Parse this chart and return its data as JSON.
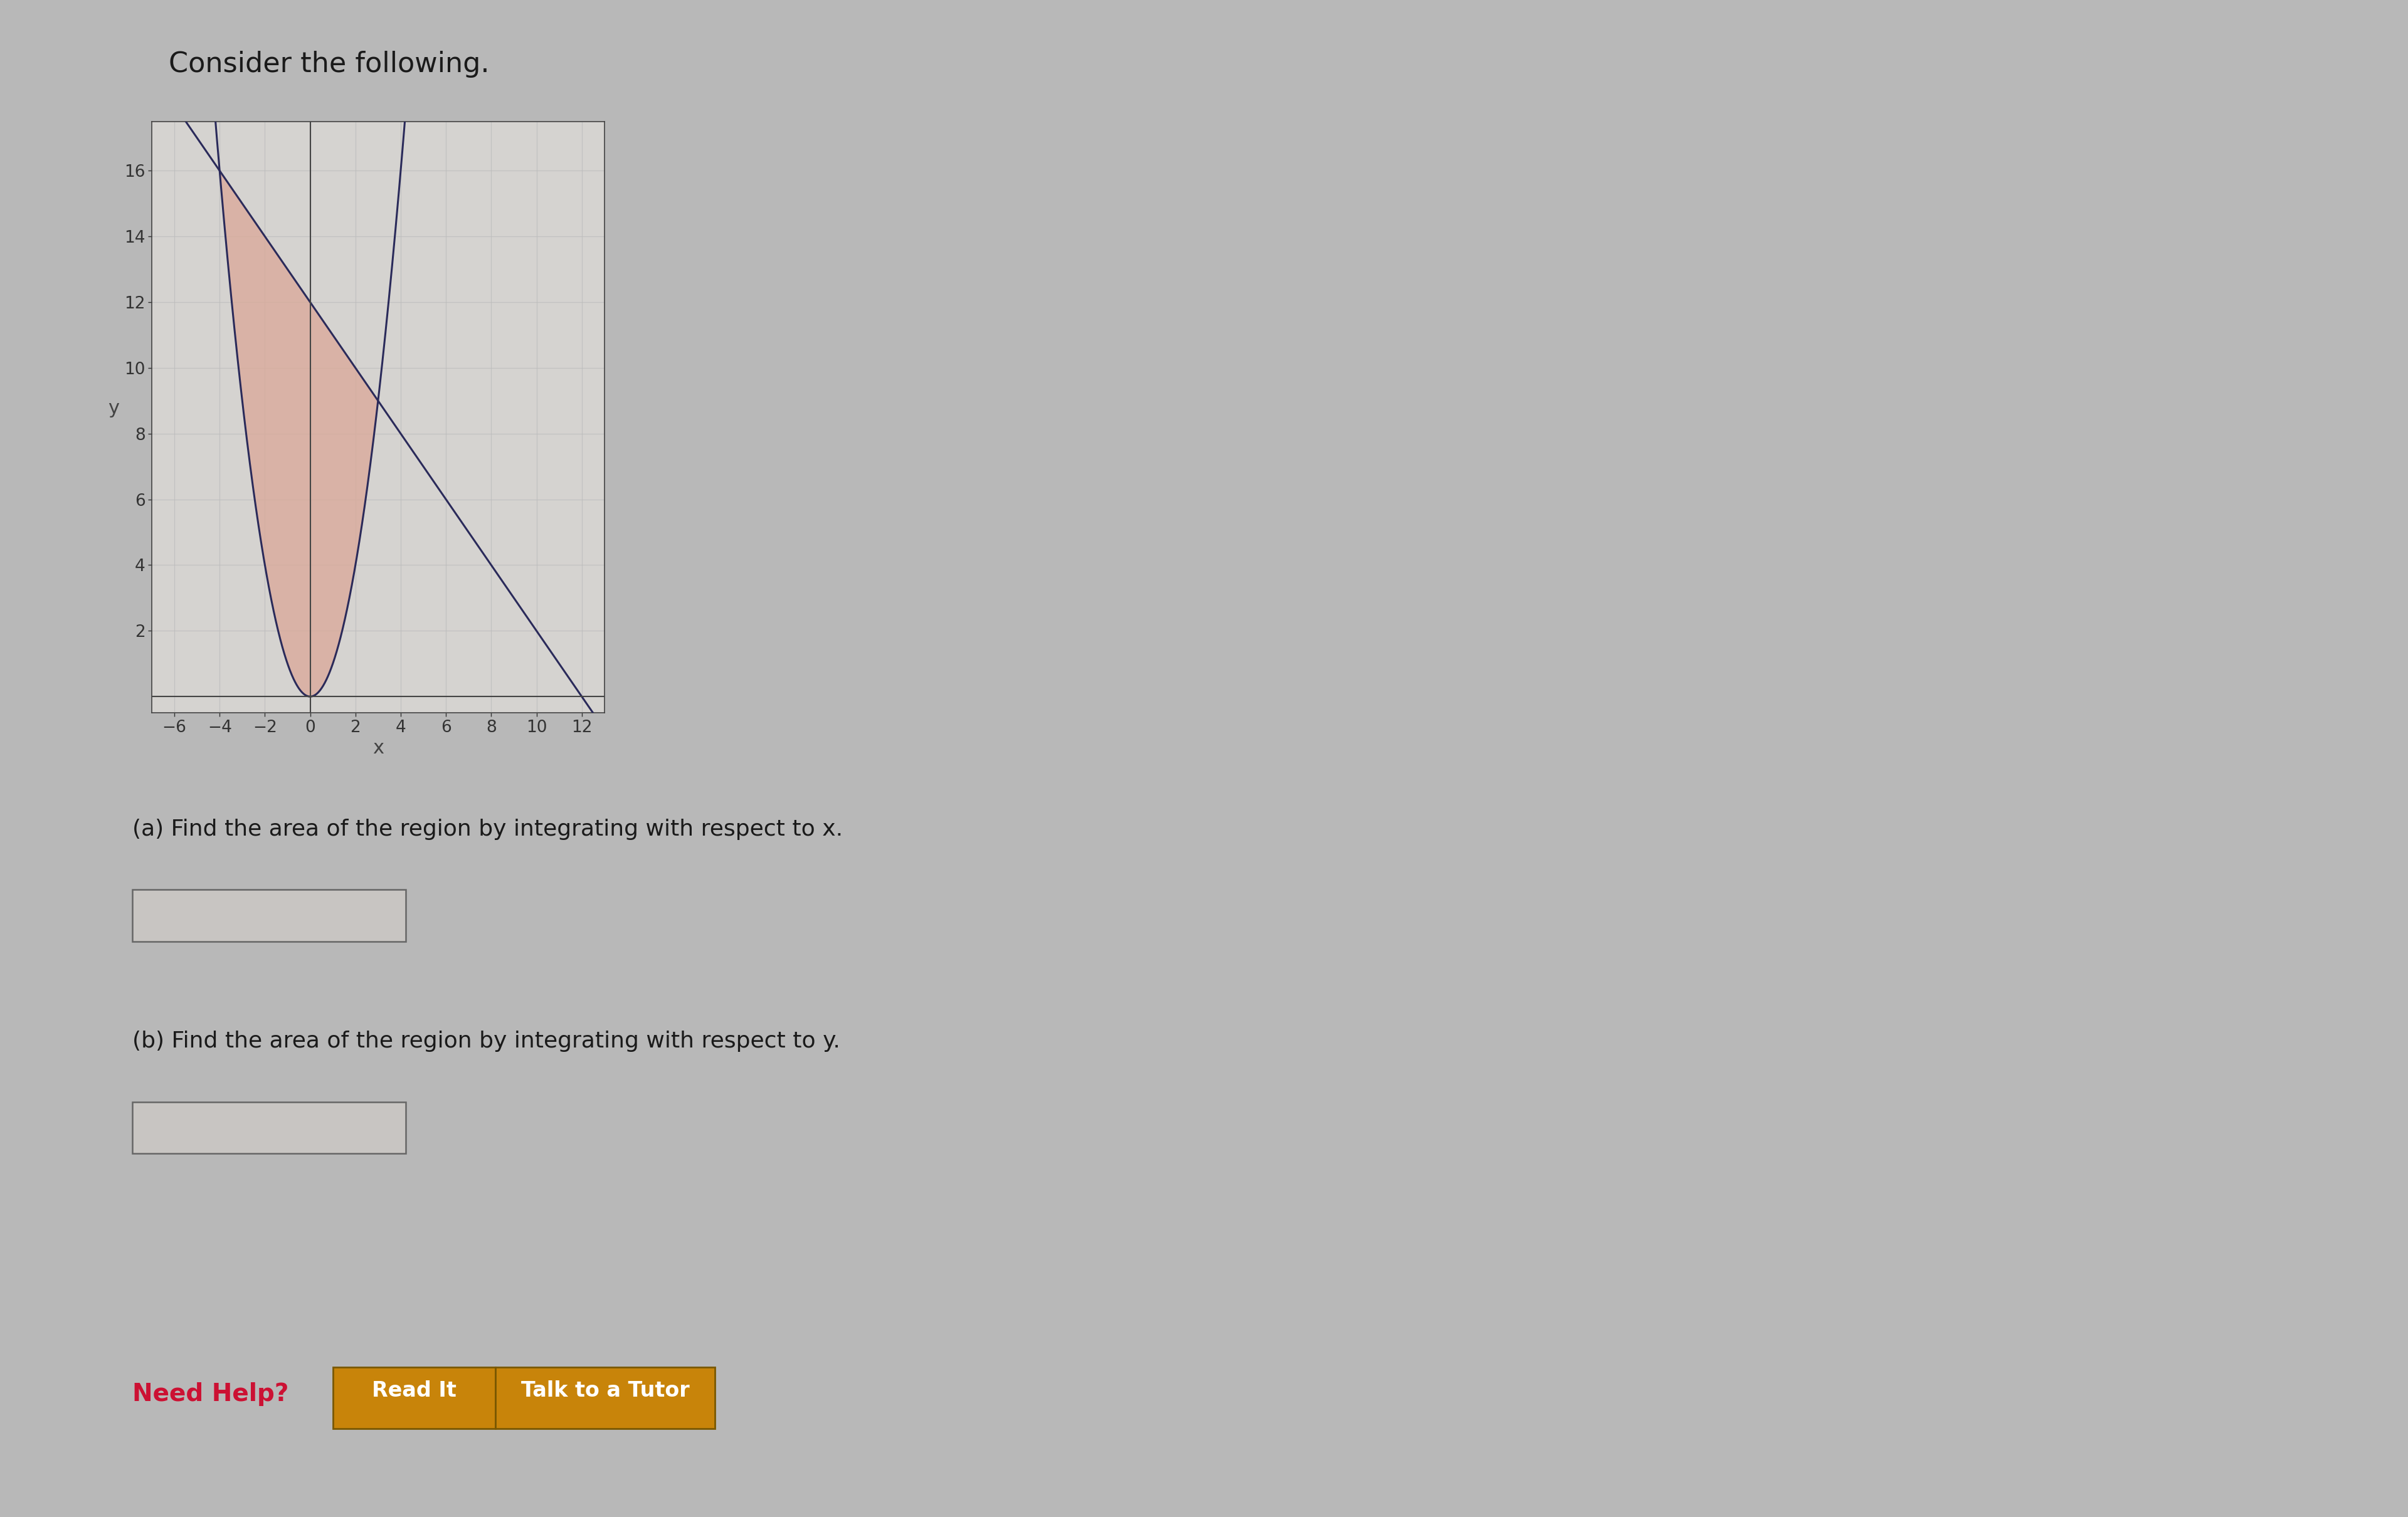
{
  "title_text": "Consider the following.",
  "bg_color": "#b8b8b8",
  "panel_color": "#d0d0d0",
  "white_panel": "#d8d5d2",
  "fill_color": "#dba898",
  "fill_alpha": 0.75,
  "curve_color": "#2a2a5a",
  "line_color": "#2a2a5a",
  "axis_color": "#444444",
  "tick_color": "#333333",
  "grid_color": "#bbbbbb",
  "xlim": [
    -7,
    13
  ],
  "ylim": [
    -0.5,
    17.5
  ],
  "xticks": [
    -6,
    -4,
    -2,
    0,
    2,
    4,
    6,
    8,
    10,
    12
  ],
  "yticks": [
    2,
    4,
    6,
    8,
    10,
    12,
    14,
    16
  ],
  "xlabel": "x",
  "ylabel": "y",
  "question_a": "(a) Find the area of the region by integrating with respect to x.",
  "question_b": "(b) Find the area of the region by integrating with respect to y.",
  "need_help": "Need Help?",
  "btn1": "Read It",
  "btn2": "Talk to a Tutor",
  "intersection_x1": -4,
  "intersection_x2": 3
}
